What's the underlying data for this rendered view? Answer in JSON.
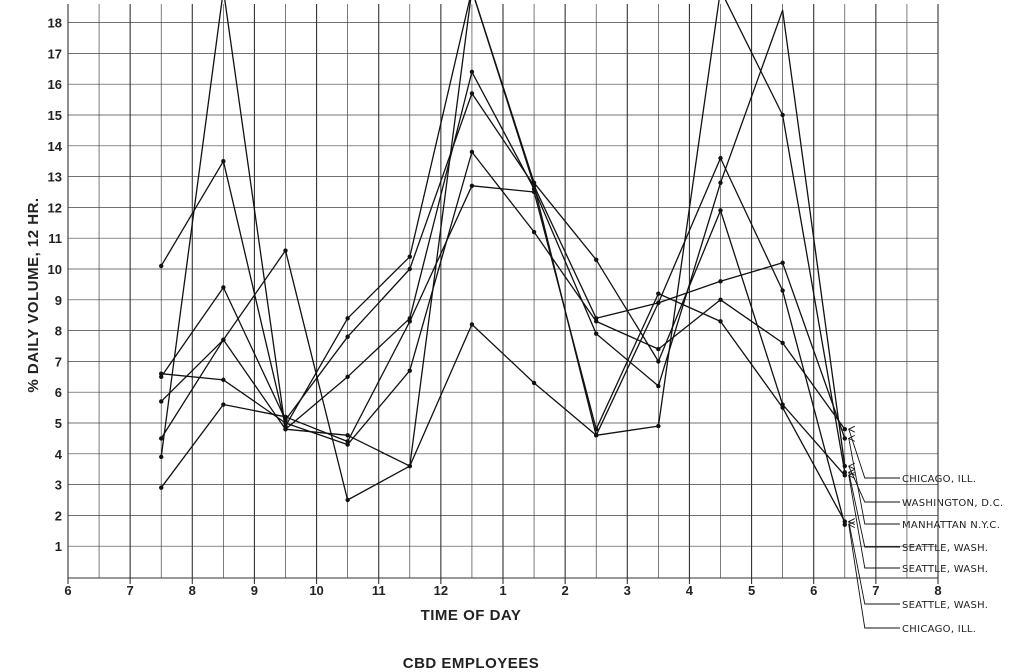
{
  "chart_data": {
    "type": "line",
    "title": "",
    "xlabel": "TIME OF DAY",
    "ylabel": "% DAILY VOLUME, 12 HR.",
    "caption": "CBD EMPLOYEES",
    "x_ticks": [
      "6",
      "7",
      "8",
      "9",
      "10",
      "11",
      "12",
      "1",
      "2",
      "3",
      "4",
      "5",
      "6",
      "7",
      "8"
    ],
    "y_ticks": [
      "1",
      "2",
      "3",
      "4",
      "5",
      "6",
      "7",
      "8",
      "9",
      "10",
      "11",
      "12",
      "13",
      "14",
      "15",
      "16",
      "17",
      "18"
    ],
    "xlim": [
      6,
      20
    ],
    "ylim": [
      0,
      18
    ],
    "grid": true,
    "x": [
      7.5,
      8.5,
      9.5,
      10.5,
      11.5,
      12.5,
      13.5,
      14.5,
      15.5,
      16.5,
      17.5,
      18.5
    ],
    "series": [
      {
        "name": "CHICAGO, ILL.",
        "values": [
          6.6,
          6.4,
          5.0,
          4.3,
          6.7,
          13.8,
          11.2,
          8.3,
          7.4,
          9.0,
          7.6,
          4.8
        ]
      },
      {
        "name": "WASHINGTON, D.C.",
        "values": [
          5.7,
          7.7,
          4.8,
          6.5,
          8.4,
          16.4,
          12.6,
          7.9,
          6.2,
          12.8,
          18.4,
          3.6
        ]
      },
      {
        "name": "MANHATTAN N.Y.C.",
        "values": [
          6.5,
          9.4,
          5.1,
          7.8,
          10.0,
          15.7,
          12.7,
          8.4,
          8.9,
          9.6,
          10.2,
          4.5
        ]
      },
      {
        "name": "SEATTLE, WASH.",
        "values": [
          10.1,
          13.5,
          4.9,
          8.4,
          10.4,
          20.0,
          12.7,
          4.6,
          4.9,
          20.0,
          15.0,
          3.4
        ]
      },
      {
        "name": "SEATTLE, WASH.",
        "values": [
          3.9,
          20.0,
          4.8,
          4.6,
          3.6,
          20.0,
          12.8,
          10.3,
          7.0,
          11.9,
          5.6,
          3.3
        ]
      },
      {
        "name": "SEATTLE, WASH.",
        "values": [
          2.9,
          5.6,
          5.2,
          4.4,
          8.3,
          12.7,
          12.5,
          4.8,
          9.2,
          8.3,
          5.5,
          1.8
        ]
      },
      {
        "name": "CHICAGO, ILL.",
        "values": [
          4.5,
          7.7,
          10.6,
          2.5,
          3.6,
          8.2,
          6.3,
          4.6,
          8.9,
          13.6,
          9.3,
          1.7
        ]
      }
    ]
  }
}
